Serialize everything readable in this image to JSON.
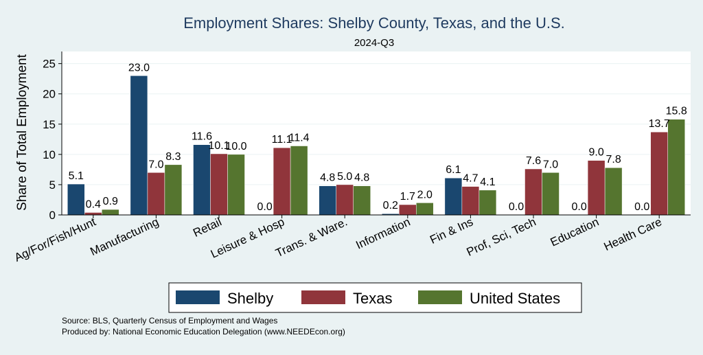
{
  "colors": {
    "background": "#eaf2f3",
    "plot_background": "#ffffff",
    "shelby": "#1a476f",
    "texas": "#90353b",
    "us": "#55752f",
    "grid": "#eaf2f3"
  },
  "chart_data": {
    "type": "bar",
    "title": "Employment Shares: Shelby County, Texas, and the U.S.",
    "subtitle": "2024-Q3",
    "ylabel": "Share of Total Employment",
    "xlabel": "",
    "ylim": [
      0,
      27
    ],
    "yticks": [
      0,
      5,
      10,
      15,
      20,
      25
    ],
    "grid": true,
    "legend_position": "bottom",
    "categories": [
      "Ag/For/Fish/Hunt",
      "Manufacturing",
      "Retail",
      "Leisure & Hosp",
      "Trans. & Ware.",
      "Information",
      "Fin & Ins",
      "Prof, Sci, Tech",
      "Education",
      "Health Care"
    ],
    "series": [
      {
        "name": "Shelby",
        "color": "#1a476f",
        "values": [
          5.1,
          23.0,
          11.6,
          0.0,
          4.8,
          0.2,
          6.1,
          0.0,
          0.0,
          0.0
        ]
      },
      {
        "name": "Texas",
        "color": "#90353b",
        "values": [
          0.4,
          7.0,
          10.1,
          11.1,
          5.0,
          1.7,
          4.7,
          7.6,
          9.0,
          13.7
        ]
      },
      {
        "name": "United States",
        "color": "#55752f",
        "values": [
          0.9,
          8.3,
          10.0,
          11.4,
          4.8,
          2.0,
          4.1,
          7.0,
          7.8,
          15.8
        ]
      }
    ]
  },
  "footnotes": [
    "Source: BLS, Quarterly Census of Employment and Wages",
    "Produced by: National Economic Education Delegation (www.NEEDEcon.org)"
  ]
}
